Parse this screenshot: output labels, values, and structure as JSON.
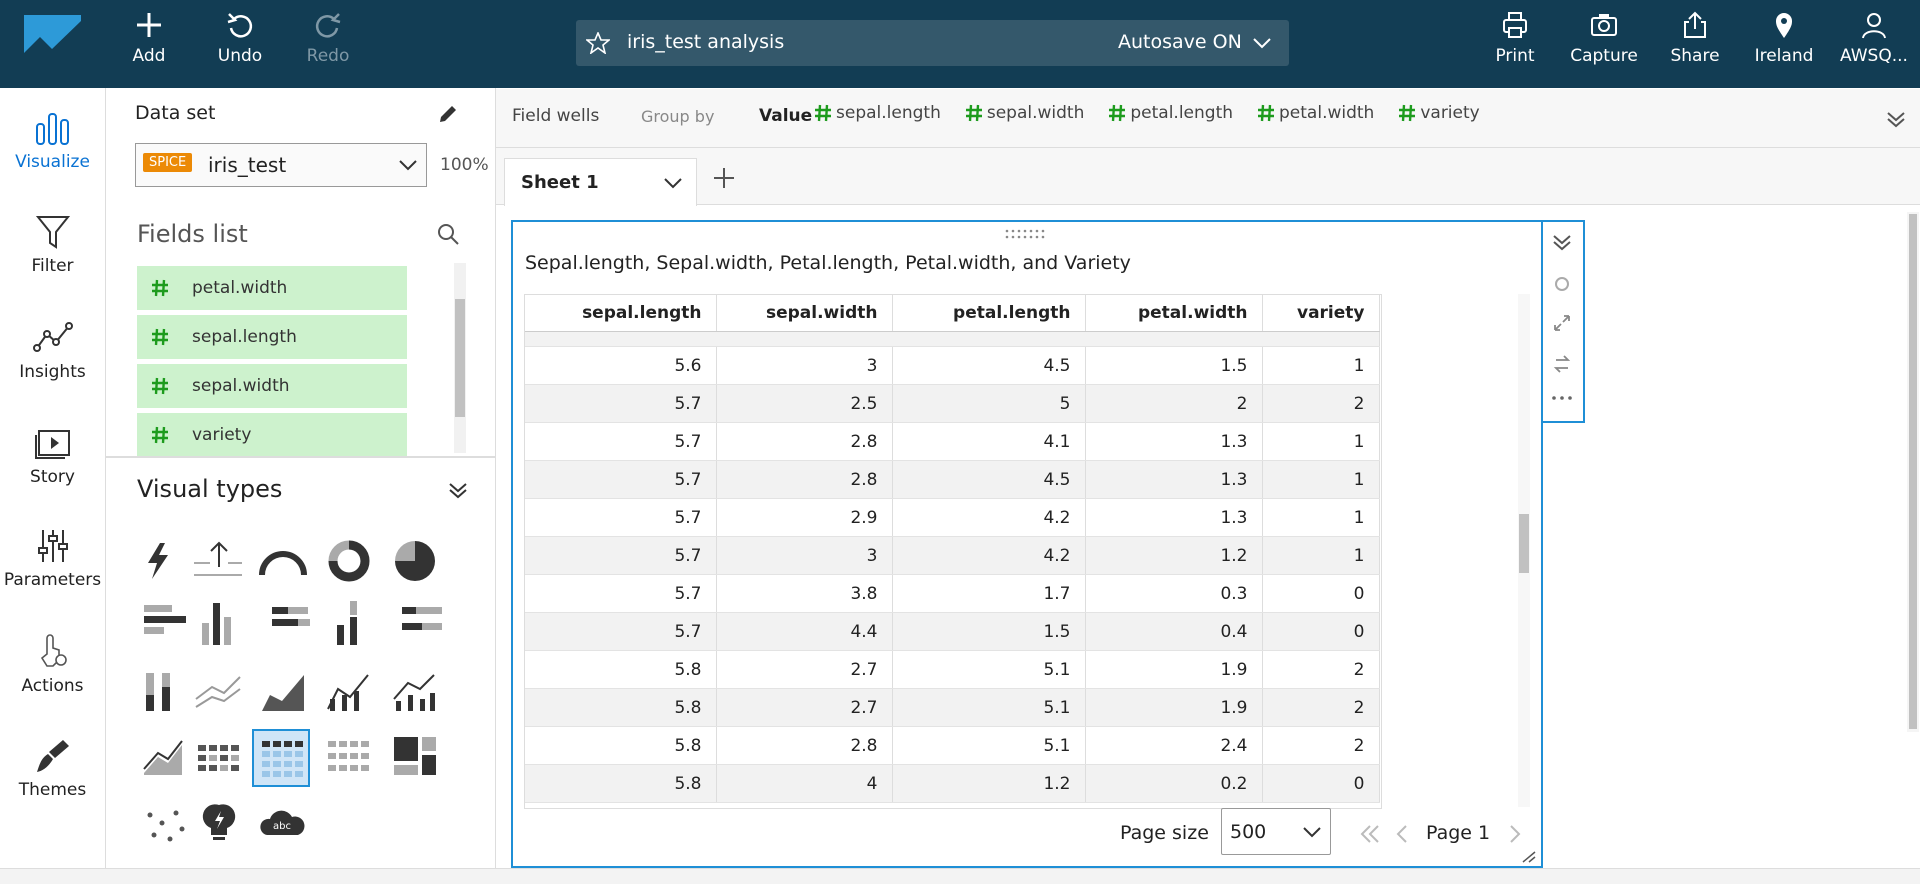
{
  "toolbar": {
    "left": [
      "Add",
      "Undo",
      "Redo"
    ],
    "analysis_name": "iris_test analysis",
    "autosave": "Autosave ON",
    "right": [
      "Print",
      "Capture",
      "Share",
      "Ireland",
      "AWSQ..."
    ]
  },
  "nav": [
    "Visualize",
    "Filter",
    "Insights",
    "Story",
    "Parameters",
    "Actions",
    "Themes"
  ],
  "data_panel": {
    "label": "Data set",
    "badge": "SPICE",
    "dataset": "iris_test",
    "percent": "100%",
    "fields_title": "Fields list",
    "fields": [
      "petal.width",
      "sepal.length",
      "sepal.width",
      "variety"
    ],
    "visual_types_title": "Visual types"
  },
  "field_wells": {
    "title": "Field wells",
    "group_by": "Group by",
    "value_label": "Value",
    "values": [
      "sepal.length",
      "sepal.width",
      "petal.length",
      "petal.width",
      "variety"
    ]
  },
  "sheet_tab": "Sheet 1",
  "visual": {
    "title": "Sepal.length, Sepal.width, Petal.length, Petal.width, and Variety",
    "table": {
      "columns": [
        "sepal.length",
        "sepal.width",
        "petal.length",
        "petal.width",
        "variety"
      ],
      "rows": [
        [
          5.6,
          3,
          4.5,
          1.5,
          1
        ],
        [
          5.7,
          2.5,
          5,
          2,
          2
        ],
        [
          5.7,
          2.8,
          4.1,
          1.3,
          1
        ],
        [
          5.7,
          2.8,
          4.5,
          1.3,
          1
        ],
        [
          5.7,
          2.9,
          4.2,
          1.3,
          1
        ],
        [
          5.7,
          3,
          4.2,
          1.2,
          1
        ],
        [
          5.7,
          3.8,
          1.7,
          0.3,
          0
        ],
        [
          5.7,
          4.4,
          1.5,
          0.4,
          0
        ],
        [
          5.8,
          2.7,
          5.1,
          1.9,
          2
        ],
        [
          5.8,
          2.7,
          5.1,
          1.9,
          2
        ],
        [
          5.8,
          2.8,
          5.1,
          2.4,
          2
        ],
        [
          5.8,
          4,
          1.2,
          0.2,
          0
        ]
      ]
    },
    "page_size_label": "Page size",
    "page_size": 500,
    "page": "Page 1"
  }
}
